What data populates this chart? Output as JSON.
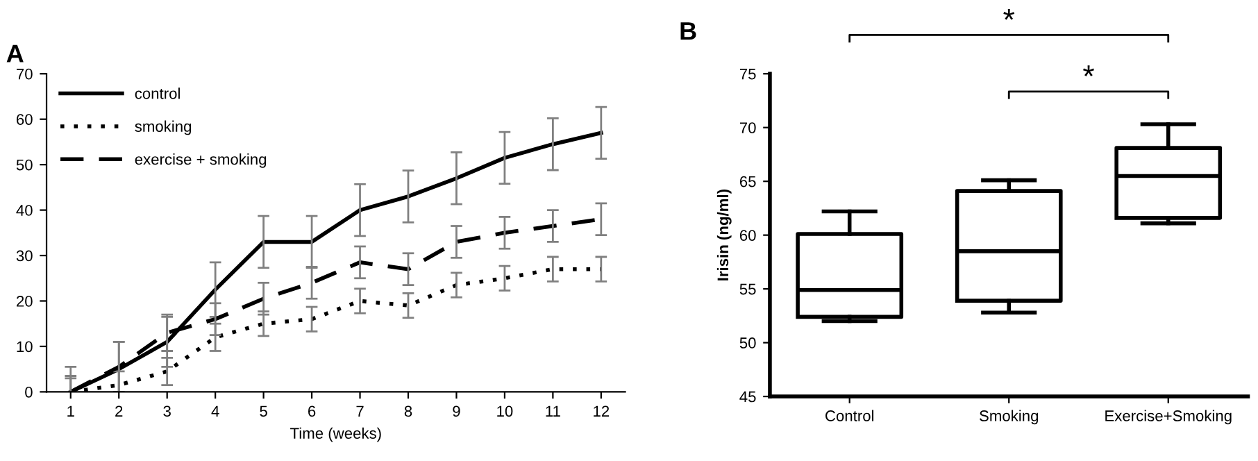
{
  "chart_data": [
    {
      "type": "line",
      "title": "A",
      "xlabel": "Time (weeks)",
      "x": [
        1,
        2,
        3,
        4,
        5,
        6,
        7,
        8,
        9,
        10,
        11,
        12
      ],
      "xlim": [
        0.5,
        12.5
      ],
      "xticks": [
        1,
        2,
        3,
        4,
        5,
        6,
        7,
        8,
        9,
        10,
        11,
        12
      ],
      "ylim": [
        0,
        70
      ],
      "yticks": [
        0,
        10,
        20,
        30,
        40,
        50,
        60,
        70
      ],
      "legend": "top left",
      "grid": false,
      "series": [
        {
          "name": "control",
          "color": "#000000",
          "line_style": "solid",
          "values": [
            0,
            5,
            11,
            22.5,
            33,
            33,
            40,
            43,
            47,
            51.5,
            54.5,
            57
          ],
          "errors": [
            5.5,
            6,
            5.5,
            6,
            5.7,
            5.7,
            5.7,
            5.7,
            5.7,
            5.7,
            5.7,
            5.7
          ]
        },
        {
          "name": "smoking",
          "color": "#000000",
          "line_style": "dotted",
          "values": [
            0,
            1.5,
            4.5,
            12,
            15,
            16,
            20,
            19,
            23.5,
            25,
            27,
            27
          ],
          "errors": [
            3,
            3,
            3,
            3,
            2.7,
            2.7,
            2.7,
            2.7,
            2.7,
            2.7,
            2.7,
            2.7
          ]
        },
        {
          "name": "exercise + smoking",
          "color": "#000000",
          "line_style": "dashed",
          "values": [
            0,
            5.5,
            13,
            16,
            20.5,
            24,
            28.5,
            27,
            33,
            35,
            36.5,
            38
          ],
          "errors": [
            3.5,
            5.5,
            4,
            3.5,
            3.5,
            3.5,
            3.5,
            3.5,
            3.5,
            3.5,
            3.5,
            3.5
          ]
        }
      ]
    },
    {
      "type": "box",
      "title": "B",
      "ylabel": "Irisin (ng/ml)",
      "categories": [
        "Control",
        "Smoking",
        "Exercise+Smoking"
      ],
      "ylim": [
        45,
        75
      ],
      "yticks": [
        45,
        50,
        55,
        60,
        65,
        70,
        75
      ],
      "grid": false,
      "boxes": [
        {
          "low": 52,
          "q1": 52.4,
          "median": 54.9,
          "q3": 60.1,
          "high": 62.2
        },
        {
          "low": 52.8,
          "q1": 53.9,
          "median": 58.5,
          "q3": 64.1,
          "high": 65.1
        },
        {
          "low": 61.1,
          "q1": 61.6,
          "median": 65.5,
          "q3": 68.1,
          "high": 70.3
        }
      ],
      "annotations": [
        "*",
        "*"
      ]
    }
  ]
}
